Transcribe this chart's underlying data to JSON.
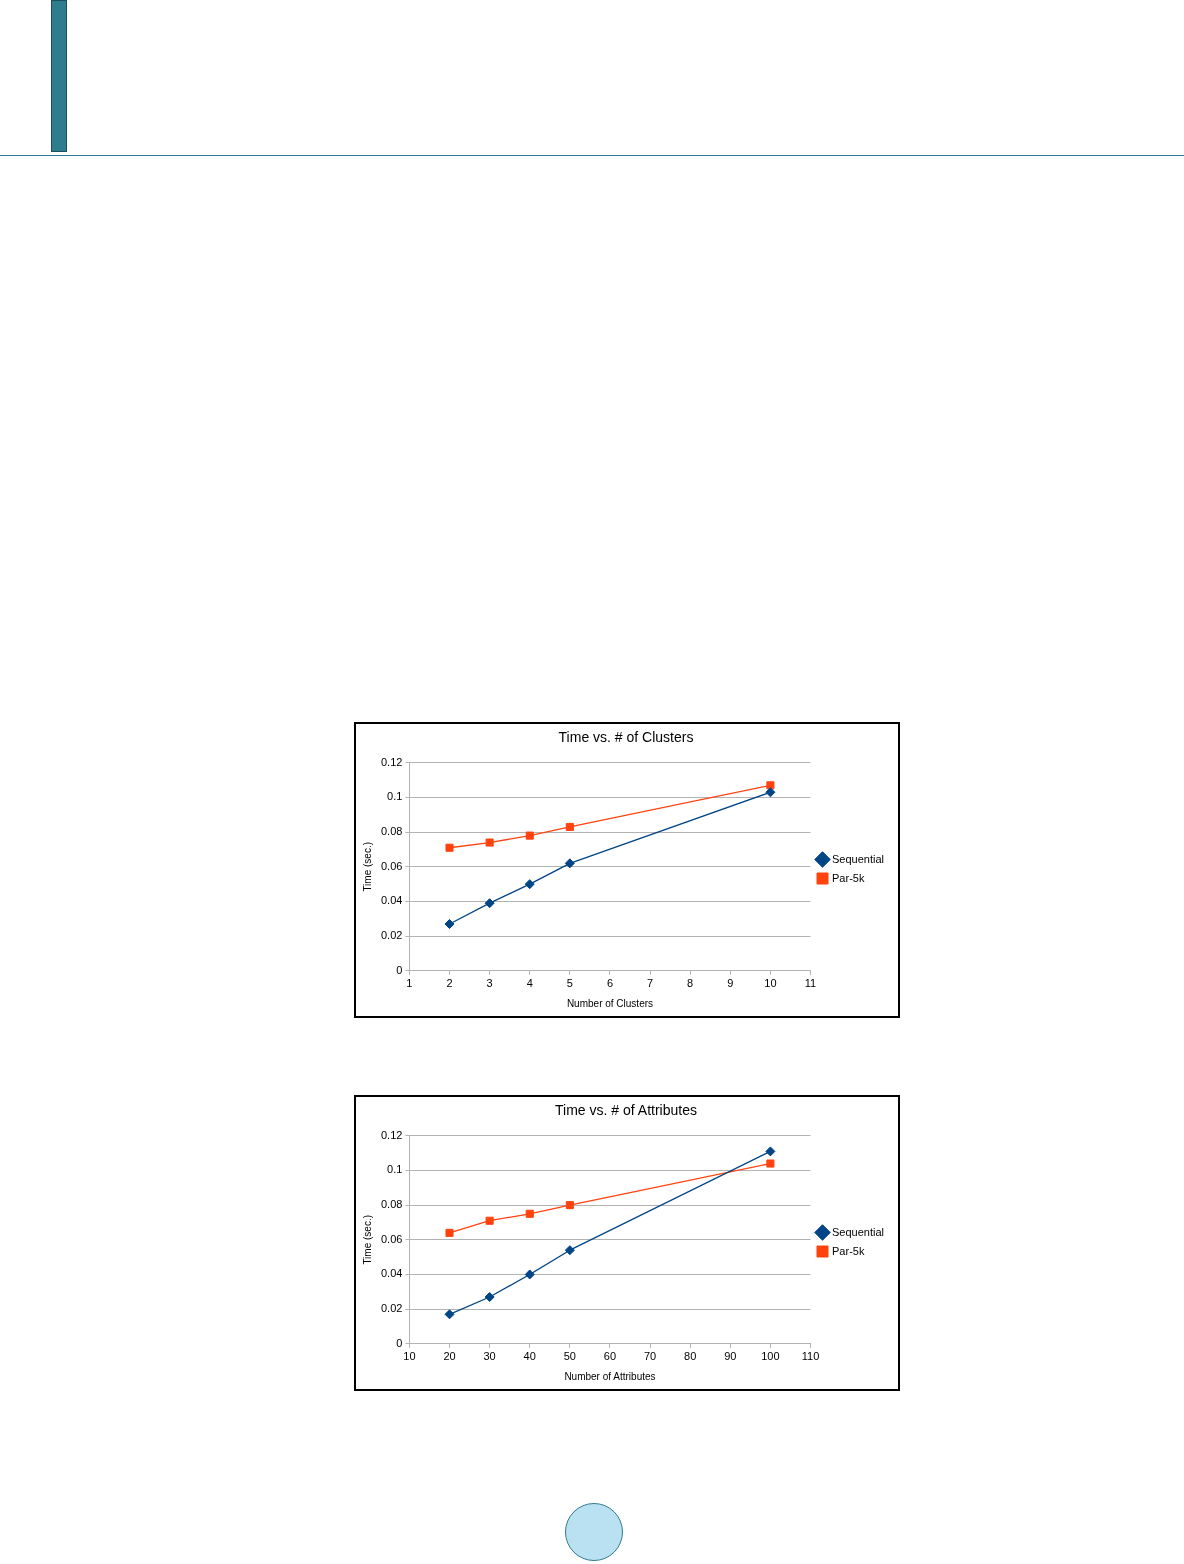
{
  "chart_data": [
    {
      "type": "line",
      "title": "Time vs. # of Clusters",
      "xlabel": "Number of Clusters",
      "ylabel": "Time (sec.)",
      "legend": "right",
      "grid": "y",
      "xlim": [
        1,
        11
      ],
      "xticks": [
        1,
        2,
        3,
        4,
        5,
        6,
        7,
        8,
        9,
        10,
        11
      ],
      "ylim": [
        0,
        0.12
      ],
      "yticks": [
        0,
        0.02,
        0.04,
        0.06,
        0.08,
        0.1,
        0.12
      ],
      "x": [
        2,
        3,
        4,
        5,
        10
      ],
      "series": [
        {
          "name": "Sequential",
          "color": "#004586",
          "marker": "diamond",
          "values": [
            0.027,
            0.039,
            0.05,
            0.062,
            0.103
          ]
        },
        {
          "name": "Par-5k",
          "color": "#ff420e",
          "marker": "square",
          "values": [
            0.071,
            0.074,
            0.078,
            0.083,
            0.107
          ]
        }
      ]
    },
    {
      "type": "line",
      "title": "Time vs. # of Attributes",
      "xlabel": "Number of Attributes",
      "ylabel": "Time (sec.)",
      "legend": "right",
      "grid": "y",
      "xlim": [
        10,
        110
      ],
      "xticks": [
        10,
        20,
        30,
        40,
        50,
        60,
        70,
        80,
        90,
        100,
        110
      ],
      "ylim": [
        0,
        0.12
      ],
      "yticks": [
        0,
        0.02,
        0.04,
        0.06,
        0.08,
        0.1,
        0.12
      ],
      "x": [
        20,
        30,
        40,
        50,
        100
      ],
      "series": [
        {
          "name": "Sequential",
          "color": "#004586",
          "marker": "diamond",
          "values": [
            0.017,
            0.027,
            0.04,
            0.054,
            0.111
          ]
        },
        {
          "name": "Par-5k",
          "color": "#ff420e",
          "marker": "square",
          "values": [
            0.064,
            0.071,
            0.075,
            0.08,
            0.104
          ]
        }
      ]
    }
  ]
}
